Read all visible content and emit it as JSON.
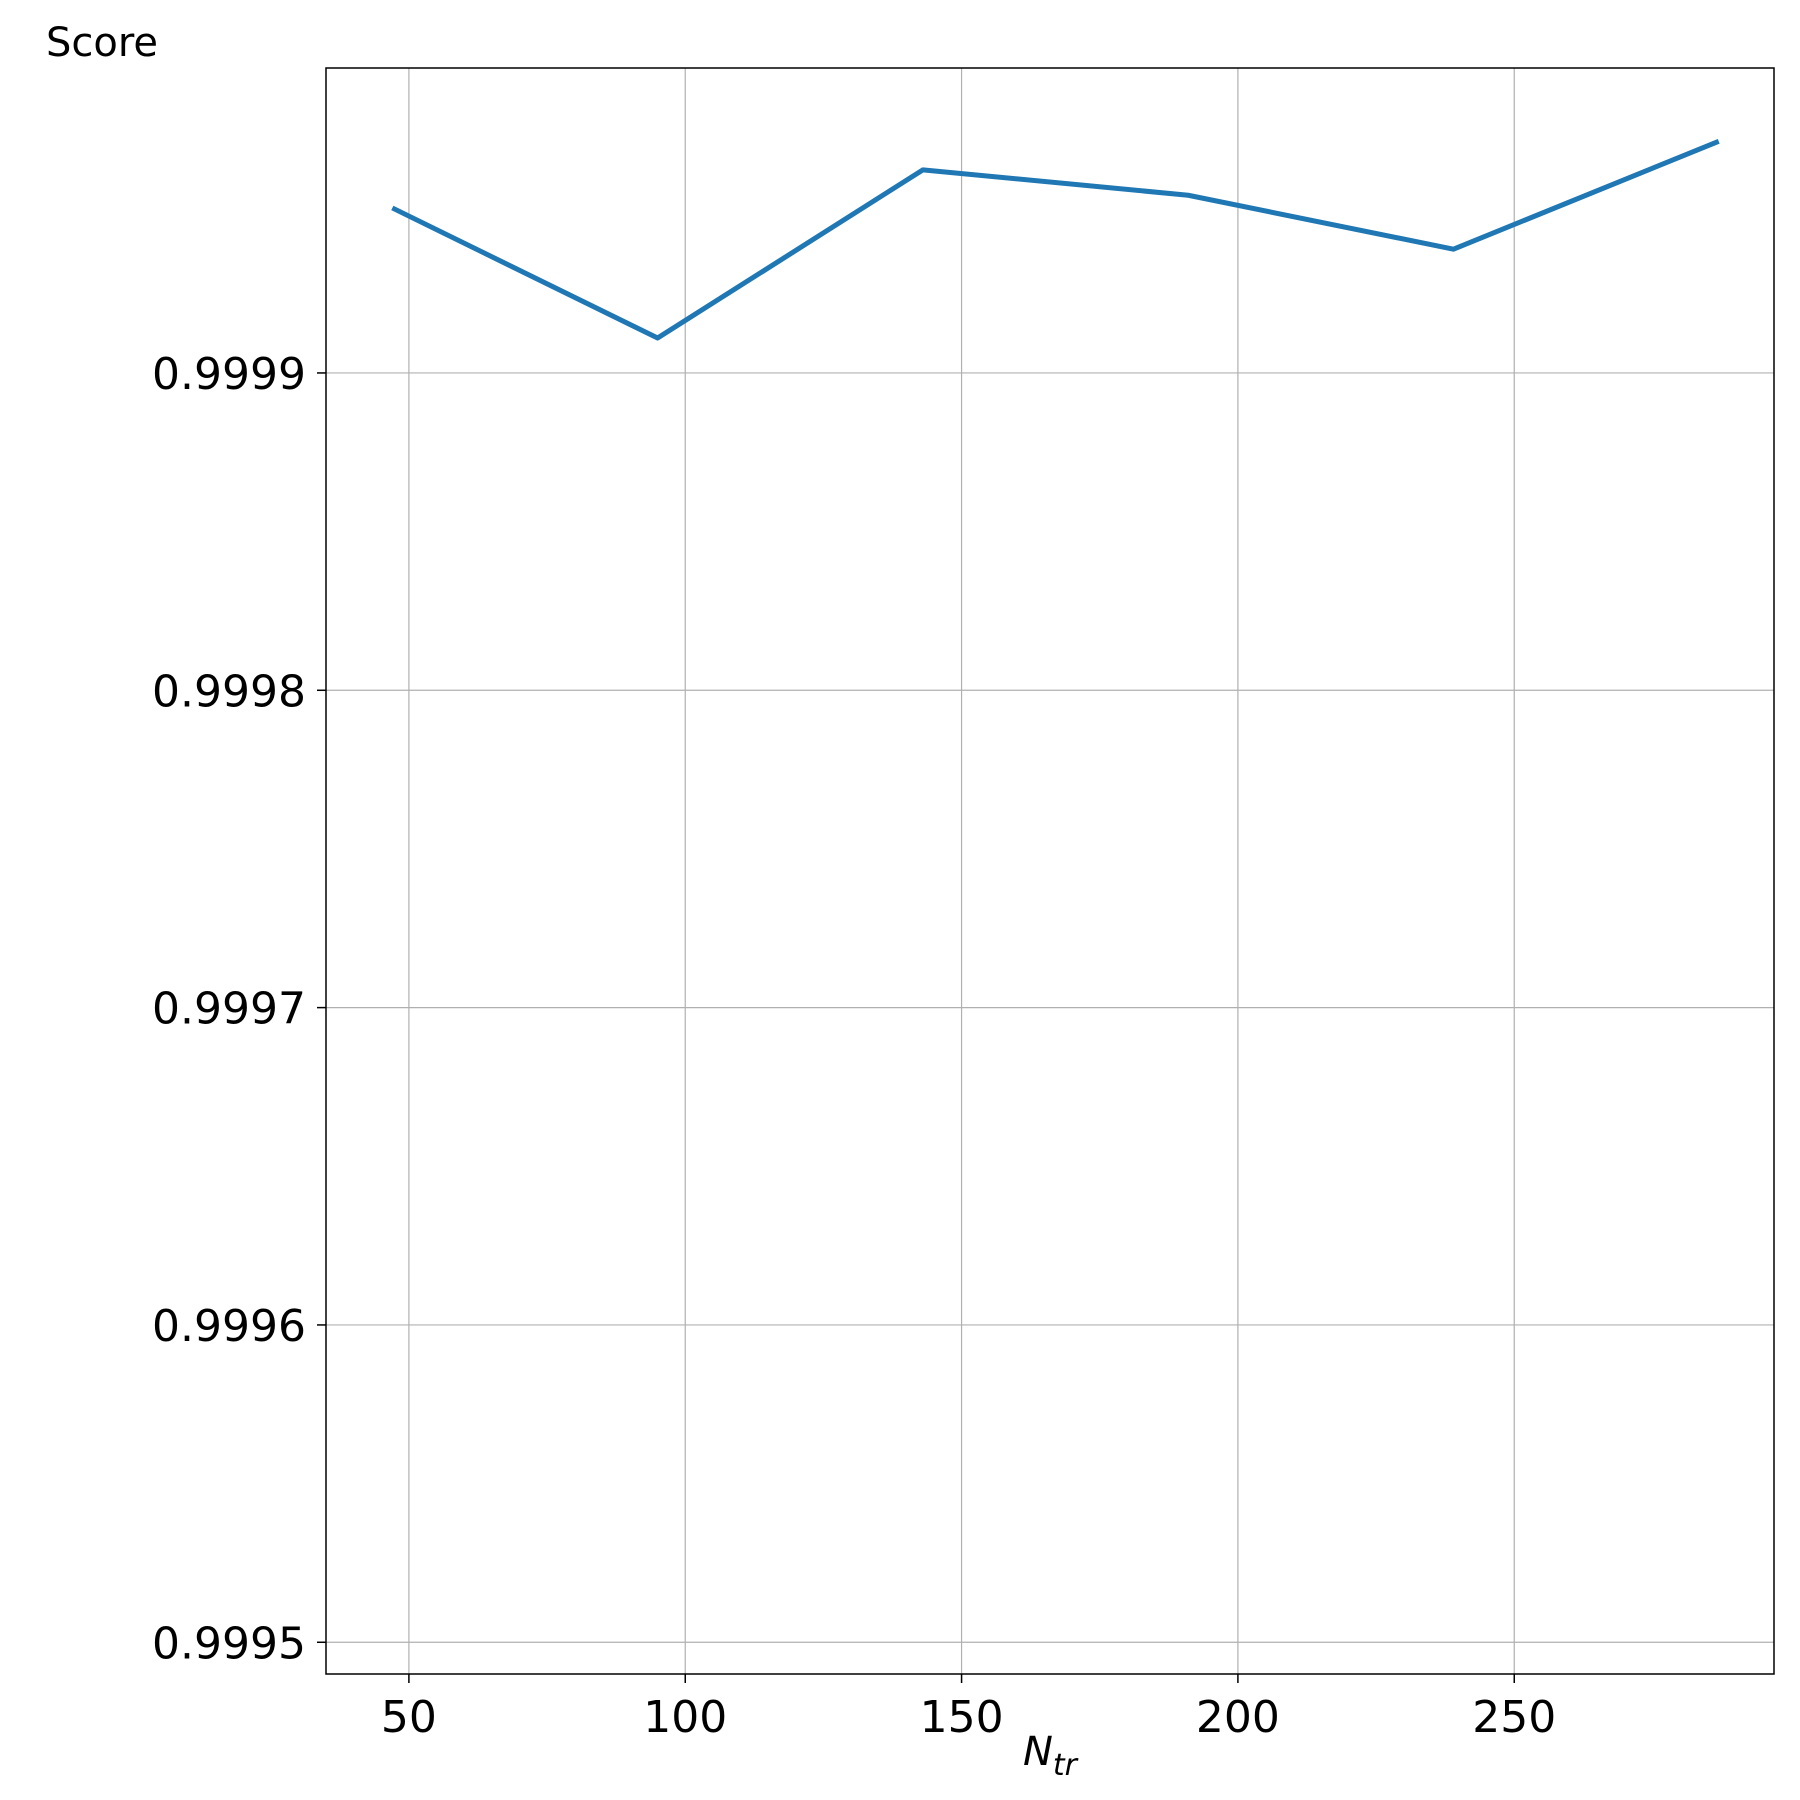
{
  "chart_data": {
    "type": "line",
    "ylabel": "Score",
    "xlabel": {
      "base": "N",
      "sub": "tr"
    },
    "xlim": [
      35,
      297
    ],
    "ylim": [
      0.99949,
      0.9999961
    ],
    "xticks": [
      50,
      100,
      150,
      200,
      250
    ],
    "yticks": [
      0.9995,
      0.9996,
      0.9997,
      0.9998,
      0.9999
    ],
    "ytick_labels": [
      "0.9995",
      "0.9996",
      "0.9997",
      "0.9998",
      "0.9999"
    ],
    "xtick_labels": [
      "50",
      "100",
      "150",
      "200",
      "250"
    ],
    "grid": true,
    "series": [
      {
        "color": "#1f77b4",
        "x": [
          47,
          95,
          143,
          191,
          239,
          287
        ],
        "y": [
          0.999952,
          0.999911,
          0.999964,
          0.999956,
          0.999939,
          0.999973
        ]
      }
    ]
  }
}
